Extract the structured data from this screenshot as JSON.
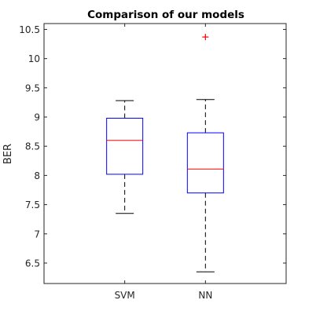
{
  "chart_data": {
    "type": "box",
    "title": "Comparison of our models",
    "xlabel": "",
    "ylabel": "BER",
    "categories": [
      "SVM",
      "NN"
    ],
    "ylim": [
      6.15,
      10.6
    ],
    "yticks": [
      6.5,
      7,
      7.5,
      8,
      8.5,
      9,
      9.5,
      10,
      10.5
    ],
    "ytick_labels": [
      "6.5",
      "7",
      "7.5",
      "8",
      "8.5",
      "9",
      "9.5",
      "10",
      "10.5"
    ],
    "grid": false,
    "legend": "none",
    "boxes": [
      {
        "name": "SVM",
        "min": 7.35,
        "q1": 8.02,
        "median": 8.6,
        "q3": 8.98,
        "max": 9.28,
        "outliers": []
      },
      {
        "name": "NN",
        "min": 6.35,
        "q1": 7.7,
        "median": 8.11,
        "q3": 8.73,
        "max": 9.3,
        "outliers": [
          10.37
        ]
      }
    ],
    "colors": {
      "box": "#0000ff",
      "median": "#ff0000",
      "whisker": "#000000",
      "outlier": "#ff0000",
      "axes": "#262626"
    }
  }
}
